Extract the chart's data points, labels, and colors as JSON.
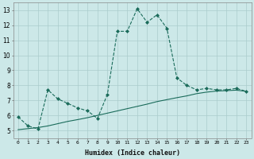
{
  "xlabel": "Humidex (Indice chaleur)",
  "bg_color": "#cce8e8",
  "grid_color": "#aacccc",
  "line_color": "#1a6b5a",
  "xlim": [
    -0.5,
    23.5
  ],
  "ylim": [
    4.5,
    13.5
  ],
  "yticks": [
    5,
    6,
    7,
    8,
    9,
    10,
    11,
    12,
    13
  ],
  "xticks": [
    0,
    1,
    2,
    3,
    4,
    5,
    6,
    7,
    8,
    9,
    10,
    11,
    12,
    13,
    14,
    15,
    16,
    17,
    18,
    19,
    20,
    21,
    22,
    23
  ],
  "curve1_x": [
    0,
    1,
    2,
    3,
    4,
    5,
    6,
    7,
    8,
    9,
    10,
    11,
    12,
    13,
    14,
    15,
    16,
    17,
    18,
    19,
    20,
    21,
    22,
    23
  ],
  "curve1_y": [
    5.9,
    5.3,
    5.1,
    7.7,
    7.1,
    6.8,
    6.5,
    6.3,
    5.8,
    7.4,
    11.6,
    11.6,
    13.1,
    12.2,
    12.7,
    11.8,
    8.5,
    8.0,
    7.7,
    7.8,
    7.7,
    7.7,
    7.8,
    7.6
  ],
  "curve2_x": [
    0,
    1,
    2,
    3,
    4,
    5,
    6,
    7,
    8,
    9,
    10,
    11,
    12,
    13,
    14,
    15,
    16,
    17,
    18,
    19,
    20,
    21,
    22,
    23
  ],
  "curve2_y": [
    5.05,
    5.12,
    5.19,
    5.3,
    5.45,
    5.6,
    5.72,
    5.85,
    6.0,
    6.15,
    6.3,
    6.45,
    6.6,
    6.75,
    6.92,
    7.05,
    7.18,
    7.3,
    7.45,
    7.55,
    7.62,
    7.65,
    7.68,
    7.6
  ]
}
